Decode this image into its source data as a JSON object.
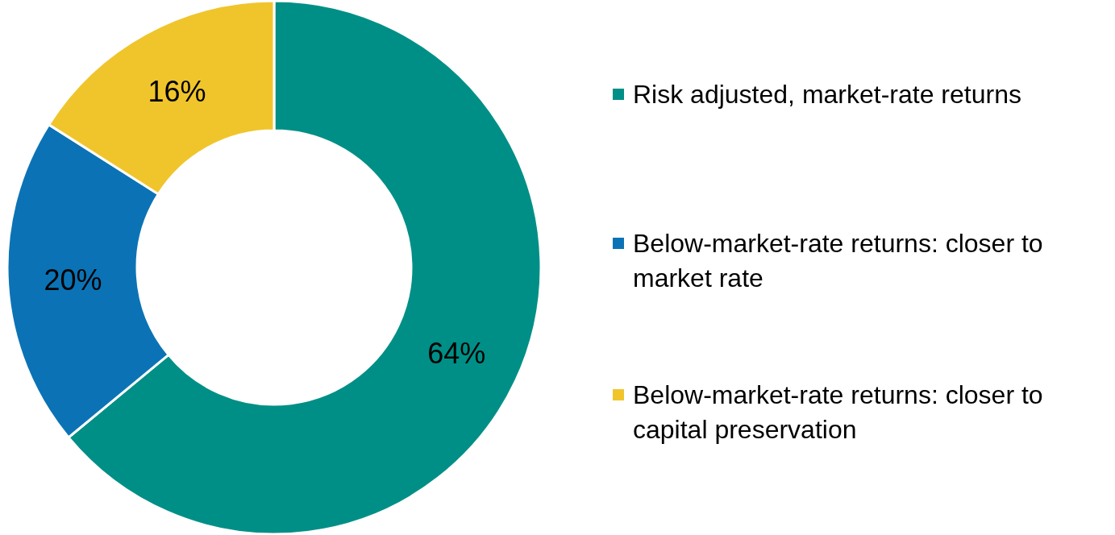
{
  "chart_data": {
    "type": "donut",
    "categories": [
      "Risk adjusted, market-rate returns",
      "Below-market-rate returns: closer to market rate",
      "Below-market-rate returns: closer to capital preservation"
    ],
    "values": [
      64,
      20,
      16
    ],
    "colors": [
      "#008f86",
      "#0b73b5",
      "#f0c52c"
    ],
    "value_labels": [
      "64%",
      "20%",
      "16%"
    ],
    "legend": "right"
  }
}
